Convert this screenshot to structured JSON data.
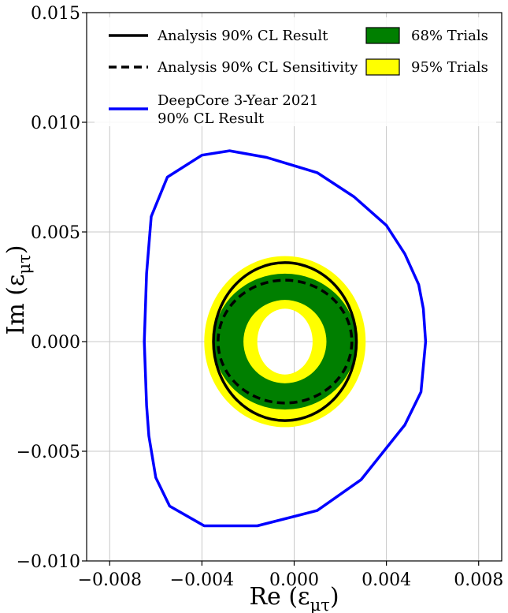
{
  "chart_data": {
    "type": "line",
    "xlabel": "Re (εμτ)",
    "ylabel": "Im (εμτ)",
    "xlim": [
      -0.009,
      0.009
    ],
    "ylim": [
      -0.01,
      0.015
    ],
    "grid": true,
    "legend_position": "top",
    "x_ticks": [
      {
        "value": -0.008,
        "label": "−0.008"
      },
      {
        "value": -0.004,
        "label": "−0.004"
      },
      {
        "value": 0.0,
        "label": "0.000"
      },
      {
        "value": 0.004,
        "label": "0.004"
      },
      {
        "value": 0.008,
        "label": "0.008"
      }
    ],
    "y_ticks": [
      {
        "value": -0.01,
        "label": "−0.010"
      },
      {
        "value": -0.005,
        "label": "−0.005"
      },
      {
        "value": 0.0,
        "label": "0.000"
      },
      {
        "value": 0.005,
        "label": "0.005"
      },
      {
        "value": 0.01,
        "label": "0.010"
      },
      {
        "value": 0.015,
        "label": "0.015"
      }
    ],
    "bands": [
      {
        "name": "95% Trials",
        "color": "#ffff00",
        "center": [
          -0.0004,
          0.0
        ],
        "outer": [
          0.0035,
          0.0039
        ],
        "inner": [
          0.0012,
          0.0015
        ]
      },
      {
        "name": "68% Trials",
        "color": "#007f00",
        "center": [
          -0.0004,
          0.0
        ],
        "outer": [
          0.0031,
          0.0031
        ],
        "inner": [
          0.0018,
          0.0019
        ]
      }
    ],
    "series": [
      {
        "name": "Analysis 90% CL Result",
        "color": "#000000",
        "style": "solid",
        "shape": "ellipse",
        "center": [
          -0.0004,
          0.0
        ],
        "radii": [
          0.0031,
          0.0036
        ]
      },
      {
        "name": "Analysis 90% CL Sensitivity",
        "color": "#000000",
        "style": "dashed",
        "shape": "ellipse",
        "center": [
          -0.0004,
          0.0
        ],
        "radii": [
          0.0029,
          0.0028
        ]
      },
      {
        "name": "DeepCore 3-Year 2021 90% CL Result",
        "label_lines": [
          "DeepCore 3-Year 2021",
          "90% CL Result"
        ],
        "color": "#0000ff",
        "style": "solid",
        "shape": "polygon",
        "points": [
          [
            -0.0028,
            0.0087
          ],
          [
            -0.0012,
            0.0084
          ],
          [
            0.001,
            0.0077
          ],
          [
            0.0026,
            0.0066
          ],
          [
            0.004,
            0.0053
          ],
          [
            0.0048,
            0.004
          ],
          [
            0.0054,
            0.0026
          ],
          [
            0.0056,
            0.0015
          ],
          [
            0.0057,
            0.0
          ],
          [
            0.0055,
            -0.0023
          ],
          [
            0.0048,
            -0.0038
          ],
          [
            0.0029,
            -0.0063
          ],
          [
            0.001,
            -0.0077
          ],
          [
            -0.0016,
            -0.0084
          ],
          [
            -0.0039,
            -0.0084
          ],
          [
            -0.0054,
            -0.0075
          ],
          [
            -0.006,
            -0.0062
          ],
          [
            -0.0063,
            -0.0043
          ],
          [
            -0.0064,
            -0.0029
          ],
          [
            -0.0065,
            0.0
          ],
          [
            -0.0064,
            0.0031
          ],
          [
            -0.0062,
            0.0057
          ],
          [
            -0.0055,
            0.0075
          ],
          [
            -0.004,
            0.0085
          ]
        ]
      }
    ]
  }
}
